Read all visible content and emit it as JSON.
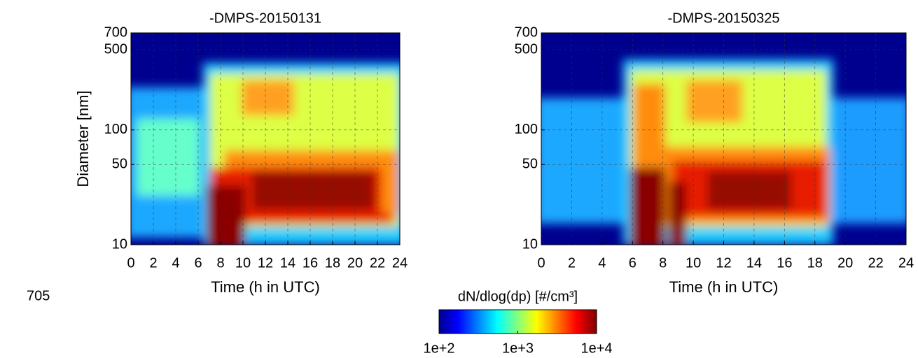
{
  "chart_data": [
    {
      "type": "heatmap",
      "title": "-DMPS-20150131",
      "xlabel": "Time (h in UTC)",
      "ylabel": "Diameter [nm]",
      "xlim": [
        0,
        24
      ],
      "xticks": [
        0,
        2,
        4,
        6,
        8,
        10,
        12,
        14,
        16,
        18,
        20,
        22,
        24
      ],
      "ylim": [
        10,
        700
      ],
      "yticks": [
        10,
        50,
        100,
        500,
        700
      ],
      "log_y": true,
      "grid": true
    },
    {
      "type": "heatmap",
      "title": "-DMPS-20150325",
      "xlabel": "Time (h in UTC)",
      "xlim": [
        0,
        24
      ],
      "xticks": [
        0,
        2,
        4,
        6,
        8,
        10,
        12,
        14,
        16,
        18,
        20,
        22,
        24
      ],
      "ylim": [
        10,
        700
      ],
      "yticks": [
        10,
        50,
        100,
        500,
        700
      ],
      "log_y": true,
      "grid": true
    }
  ],
  "colorbar": {
    "label": "dN/dlog(dp) [#/cm³]",
    "lim": [
      100,
      10000
    ],
    "log": true,
    "ticks": [
      {
        "value": 100,
        "label": "1e+2"
      },
      {
        "value": 1000,
        "label": "1e+3"
      },
      {
        "value": 10000,
        "label": "1e+4"
      }
    ]
  },
  "line_number": "705"
}
